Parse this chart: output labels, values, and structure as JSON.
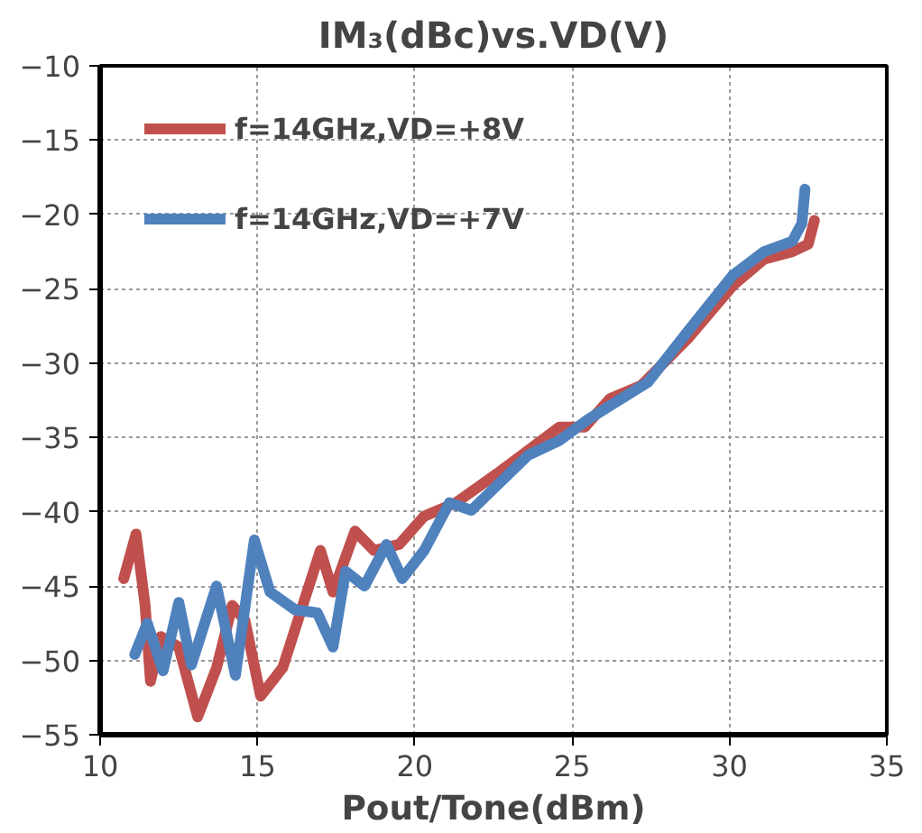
{
  "chart_data": {
    "type": "line",
    "title": "IM₃(dBc)vs.VD(V)",
    "xlabel": "Pout/Tone(dBm)",
    "xlim": [
      10,
      35
    ],
    "xticks": [
      10,
      15,
      20,
      25,
      30,
      35
    ],
    "ylim": [
      -55,
      -10
    ],
    "yticks": [
      -55,
      -50,
      -45,
      -40,
      -35,
      -30,
      -25,
      -20,
      -15,
      -10
    ],
    "grid": true,
    "legend": "top left",
    "line_style": "solid",
    "marker": "none",
    "series": [
      {
        "name": "f=14GHz,VD=+8V",
        "color": "#c0504d",
        "x": [
          10.75,
          11.14,
          11.43,
          11.6,
          11.93,
          12.5,
          13.1,
          13.7,
          14.2,
          14.6,
          15.1,
          15.8,
          17.0,
          17.4,
          18.1,
          18.7,
          19.5,
          20.3,
          21.3,
          22.7,
          24.6,
          25.4,
          26.2,
          27.2,
          28.7,
          30.1,
          31.1,
          32.0,
          32.5,
          32.7
        ],
        "values": [
          -44.5,
          -41.5,
          -46.3,
          -51.4,
          -48.4,
          -49.1,
          -53.8,
          -50.5,
          -46.3,
          -47.3,
          -52.4,
          -50.5,
          -42.6,
          -45.4,
          -41.3,
          -42.6,
          -42.2,
          -40.3,
          -39.4,
          -37.3,
          -34.3,
          -34.3,
          -32.4,
          -31.5,
          -28.3,
          -24.8,
          -23.0,
          -22.5,
          -22.0,
          -20.4
        ]
      },
      {
        "name": "f=14GHz,VD=+7V",
        "color": "#4f81bd",
        "x": [
          11.1,
          11.5,
          12.0,
          12.5,
          12.9,
          13.7,
          14.3,
          14.9,
          15.4,
          16.2,
          16.9,
          17.4,
          17.8,
          18.4,
          19.1,
          19.6,
          20.3,
          21.1,
          21.8,
          23.6,
          24.6,
          25.5,
          27.4,
          28.7,
          30.1,
          31.1,
          32.0,
          32.3,
          32.4
        ],
        "values": [
          -49.6,
          -47.5,
          -50.7,
          -46.1,
          -50.3,
          -45.0,
          -51.0,
          -41.9,
          -45.4,
          -46.6,
          -46.8,
          -49.1,
          -44.0,
          -45.0,
          -42.2,
          -44.5,
          -42.6,
          -39.4,
          -39.9,
          -36.2,
          -35.2,
          -33.8,
          -31.3,
          -27.8,
          -24.1,
          -22.5,
          -21.8,
          -20.6,
          -18.3
        ]
      }
    ]
  }
}
